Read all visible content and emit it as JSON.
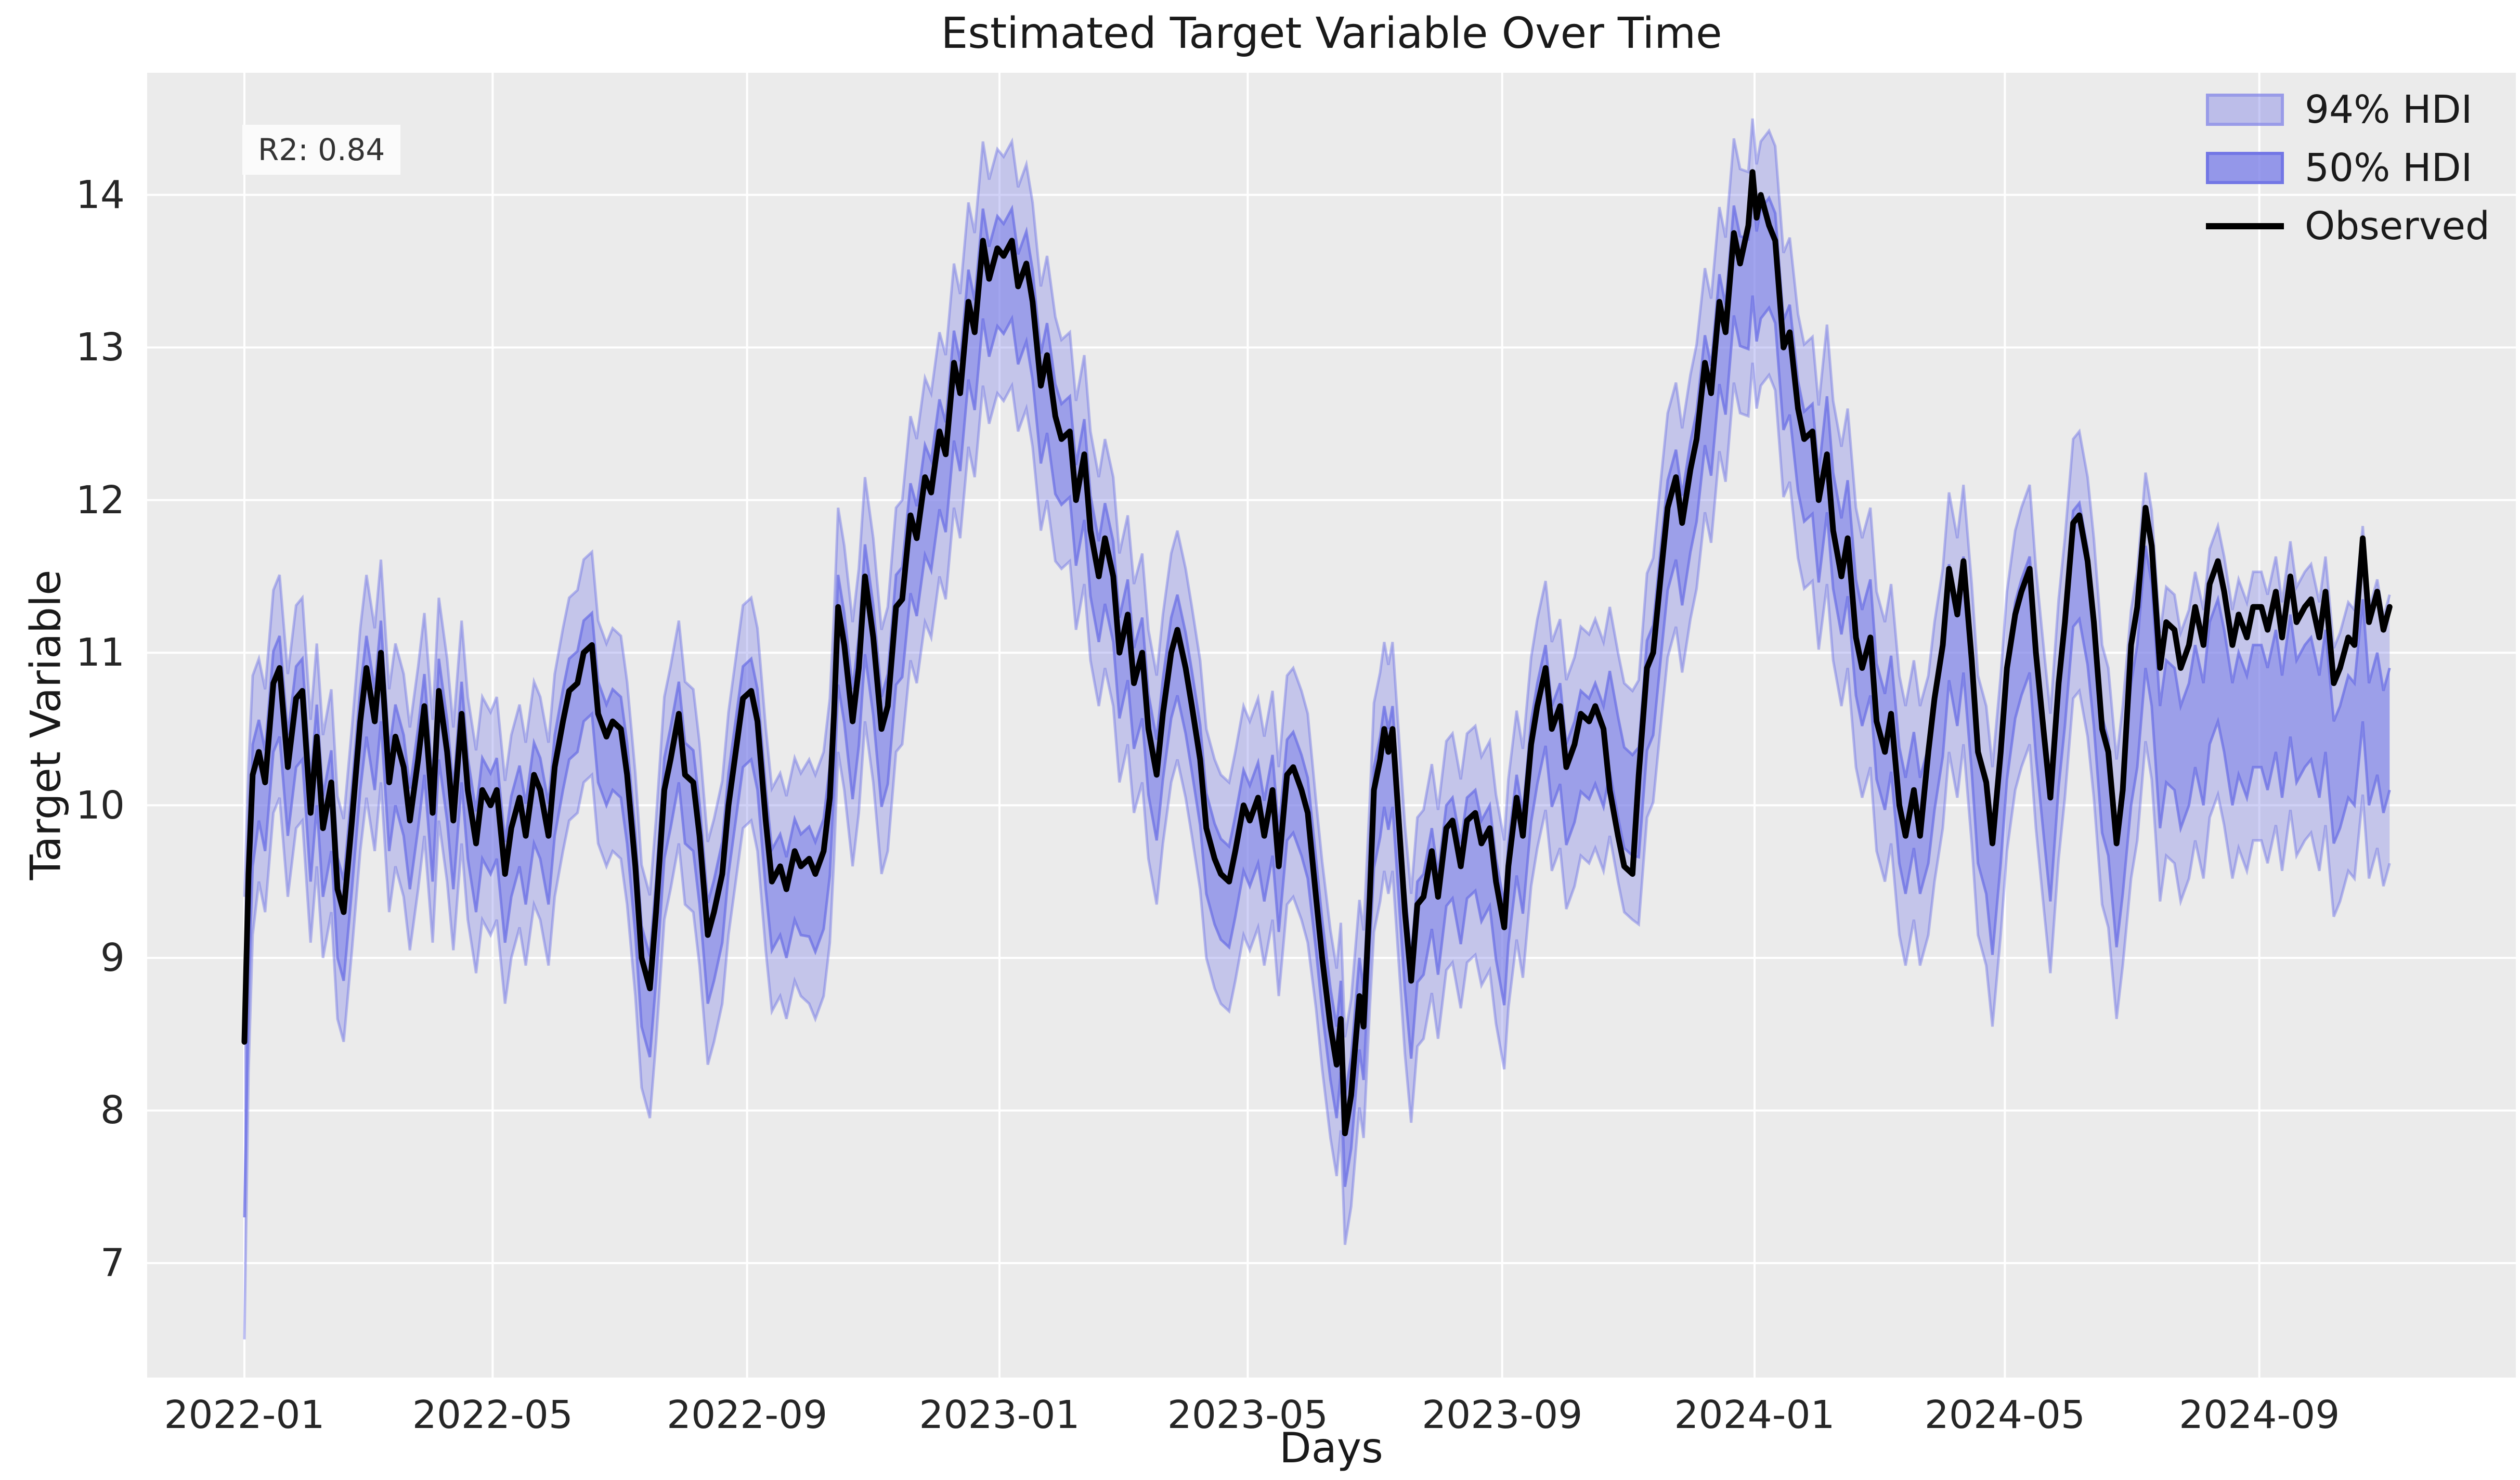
{
  "annotation": {
    "text": "R2: 0.84"
  },
  "chart_data": {
    "type": "line",
    "title": "Estimated Target Variable Over Time",
    "xlabel": "Days",
    "ylabel": "Target Variable",
    "legend_position": "upper right",
    "grid": true,
    "legend": [
      {
        "label": "94% HDI",
        "swatch": "band-light"
      },
      {
        "label": "50% HDI",
        "swatch": "band-dark"
      },
      {
        "label": "Observed",
        "swatch": "black-line"
      }
    ],
    "colors": {
      "band": "#7b7fe8",
      "band_edge": "#6c70e4",
      "band_alpha_94": 0.35,
      "band_alpha_50": 0.55,
      "observed": "#000000",
      "plot_bg": "#ebebeb",
      "grid": "#ffffff",
      "text": "#262626",
      "annotation_bg": "#fbfbfb"
    },
    "x_unit": "days since 2022-01-01",
    "xlim_days": [
      -47,
      1098
    ],
    "ylim": [
      6.25,
      14.8
    ],
    "x_ticks": [
      {
        "day": 0,
        "label": "2022-01"
      },
      {
        "day": 120,
        "label": "2022-05"
      },
      {
        "day": 243,
        "label": "2022-09"
      },
      {
        "day": 365,
        "label": "2023-01"
      },
      {
        "day": 485,
        "label": "2023-05"
      },
      {
        "day": 608,
        "label": "2023-09"
      },
      {
        "day": 730,
        "label": "2024-01"
      },
      {
        "day": 851,
        "label": "2024-05"
      },
      {
        "day": 974,
        "label": "2024-09"
      }
    ],
    "y_ticks": [
      7,
      8,
      9,
      10,
      11,
      12,
      13,
      14
    ],
    "series": {
      "days": [
        0,
        2,
        4,
        7,
        10,
        14,
        17,
        21,
        25,
        28,
        32,
        35,
        38,
        42,
        45,
        48,
        52,
        56,
        59,
        63,
        66,
        70,
        73,
        77,
        80,
        84,
        87,
        91,
        94,
        98,
        101,
        105,
        108,
        112,
        115,
        119,
        122,
        126,
        129,
        133,
        136,
        140,
        143,
        147,
        150,
        154,
        157,
        161,
        164,
        168,
        171,
        175,
        178,
        182,
        185,
        189,
        192,
        196,
        199,
        203,
        206,
        210,
        213,
        217,
        220,
        224,
        227,
        231,
        234,
        238,
        241,
        245,
        248,
        252,
        255,
        259,
        262,
        266,
        269,
        273,
        276,
        280,
        283,
        285,
        287,
        290,
        294,
        297,
        300,
        304,
        308,
        311,
        315,
        318,
        322,
        325,
        329,
        332,
        336,
        339,
        343,
        346,
        350,
        353,
        357,
        360,
        364,
        367,
        371,
        374,
        378,
        381,
        385,
        388,
        392,
        395,
        399,
        402,
        406,
        409,
        413,
        416,
        420,
        423,
        427,
        430,
        434,
        437,
        441,
        444,
        448,
        451,
        455,
        458,
        462,
        465,
        469,
        472,
        476,
        479,
        483,
        486,
        490,
        493,
        497,
        500,
        504,
        507,
        511,
        514,
        518,
        521,
        525,
        528,
        530,
        532,
        535,
        539,
        541,
        544,
        546,
        549,
        551,
        553,
        555,
        558,
        561,
        564,
        567,
        570,
        574,
        577,
        581,
        584,
        588,
        591,
        595,
        598,
        602,
        605,
        609,
        611,
        615,
        618,
        622,
        625,
        629,
        632,
        636,
        639,
        643,
        646,
        650,
        653,
        657,
        660,
        664,
        667,
        671,
        674,
        678,
        681,
        685,
        688,
        692,
        695,
        699,
        702,
        706,
        709,
        713,
        716,
        720,
        723,
        727,
        729,
        731,
        733,
        737,
        740,
        744,
        747,
        751,
        754,
        758,
        761,
        765,
        768,
        772,
        775,
        779,
        782,
        786,
        789,
        793,
        796,
        800,
        803,
        807,
        810,
        814,
        817,
        821,
        824,
        828,
        831,
        835,
        838,
        842,
        845,
        849,
        852,
        856,
        859,
        863,
        866,
        870,
        873,
        877,
        880,
        884,
        887,
        891,
        894,
        898,
        901,
        905,
        908,
        912,
        915,
        919,
        922,
        926,
        929,
        933,
        936,
        940,
        943,
        947,
        950,
        954,
        957,
        961,
        964,
        968,
        971,
        975,
        978,
        982,
        985,
        989,
        992,
        996,
        999,
        1003,
        1006,
        1010,
        1013,
        1017,
        1020,
        1024,
        1027,
        1031,
        1034,
        1037
      ],
      "observed": [
        8.45,
        9.55,
        10.2,
        10.35,
        10.15,
        10.8,
        10.9,
        10.25,
        10.7,
        10.75,
        9.95,
        10.45,
        9.85,
        10.15,
        9.45,
        9.3,
        9.9,
        10.55,
        10.9,
        10.55,
        11.0,
        10.15,
        10.45,
        10.25,
        9.9,
        10.3,
        10.65,
        9.95,
        10.75,
        10.35,
        9.9,
        10.6,
        10.1,
        9.75,
        10.1,
        10.0,
        10.1,
        9.55,
        9.85,
        10.05,
        9.8,
        10.2,
        10.1,
        9.8,
        10.25,
        10.55,
        10.75,
        10.8,
        11.0,
        11.05,
        10.6,
        10.45,
        10.55,
        10.5,
        10.2,
        9.6,
        9.0,
        8.8,
        9.3,
        10.1,
        10.3,
        10.6,
        10.2,
        10.15,
        9.8,
        9.15,
        9.3,
        9.55,
        10.0,
        10.4,
        10.7,
        10.75,
        10.55,
        9.9,
        9.5,
        9.6,
        9.45,
        9.7,
        9.6,
        9.65,
        9.55,
        9.7,
        10.05,
        10.6,
        11.3,
        11.05,
        10.55,
        10.9,
        11.5,
        11.1,
        10.5,
        10.65,
        11.3,
        11.35,
        11.9,
        11.75,
        12.15,
        12.05,
        12.45,
        12.3,
        12.9,
        12.7,
        13.3,
        13.1,
        13.7,
        13.45,
        13.65,
        13.6,
        13.7,
        13.4,
        13.55,
        13.3,
        12.75,
        12.95,
        12.55,
        12.4,
        12.45,
        12.0,
        12.3,
        11.8,
        11.5,
        11.75,
        11.5,
        11.0,
        11.25,
        10.8,
        11.0,
        10.5,
        10.2,
        10.6,
        11.0,
        11.15,
        10.9,
        10.65,
        10.3,
        9.85,
        9.65,
        9.55,
        9.5,
        9.7,
        10.0,
        9.9,
        10.05,
        9.8,
        10.1,
        9.6,
        10.2,
        10.25,
        10.1,
        9.95,
        9.4,
        9.0,
        8.55,
        8.3,
        8.6,
        7.85,
        8.1,
        8.75,
        8.55,
        9.4,
        10.1,
        10.3,
        10.5,
        10.35,
        10.5,
        9.9,
        9.3,
        8.85,
        9.35,
        9.4,
        9.7,
        9.4,
        9.85,
        9.9,
        9.6,
        9.9,
        9.95,
        9.75,
        9.85,
        9.5,
        9.2,
        9.6,
        10.05,
        9.8,
        10.4,
        10.65,
        10.9,
        10.5,
        10.65,
        10.25,
        10.4,
        10.6,
        10.55,
        10.65,
        10.5,
        10.1,
        9.8,
        9.6,
        9.55,
        10.2,
        10.9,
        11.0,
        11.55,
        11.95,
        12.15,
        11.85,
        12.2,
        12.4,
        12.9,
        12.7,
        13.3,
        13.1,
        13.75,
        13.55,
        13.8,
        14.15,
        13.85,
        14.0,
        13.8,
        13.7,
        13.0,
        13.1,
        12.6,
        12.4,
        12.45,
        12.0,
        12.3,
        11.8,
        11.5,
        11.75,
        11.1,
        10.9,
        11.1,
        10.55,
        10.35,
        10.6,
        10.0,
        9.8,
        10.1,
        9.8,
        10.35,
        10.7,
        11.05,
        11.55,
        11.25,
        11.6,
        10.95,
        10.35,
        10.15,
        9.75,
        10.35,
        10.9,
        11.25,
        11.4,
        11.55,
        11.0,
        10.45,
        10.05,
        10.8,
        11.2,
        11.85,
        11.9,
        11.6,
        11.2,
        10.5,
        10.35,
        9.75,
        10.1,
        11.05,
        11.3,
        11.95,
        11.7,
        10.9,
        11.2,
        11.15,
        10.9,
        11.05,
        11.3,
        11.05,
        11.45,
        11.6,
        11.4,
        11.05,
        11.25,
        11.1,
        11.3,
        11.3,
        11.15,
        11.4,
        11.1,
        11.5,
        11.2,
        11.3,
        11.35,
        11.1,
        11.4,
        10.8,
        10.9,
        11.1,
        11.05,
        11.75,
        11.2,
        11.4,
        11.15,
        11.3
      ]
    },
    "hdi_segments": [
      {
        "from_day": 0,
        "mean_offset": 0.5,
        "hw50": 0.65,
        "hw94": 1.45
      },
      {
        "from_day": 2,
        "mean_offset": 0.3,
        "hw50": 0.45,
        "hw94": 1.0
      },
      {
        "from_day": 4,
        "mean_offset": 0.2,
        "hw50": 0.4,
        "hw94": 0.85
      },
      {
        "from_day": 7,
        "mean_offset": 0.12,
        "hw50": 0.33,
        "hw94": 0.73
      },
      {
        "from_day": 273,
        "mean_offset": 0.15,
        "hw50": 0.36,
        "hw94": 0.8
      },
      {
        "from_day": 395,
        "mean_offset": 0.1,
        "hw50": 0.33,
        "hw94": 0.75
      },
      {
        "from_day": 518,
        "mean_offset": 0.05,
        "hw50": 0.3,
        "hw94": 0.68
      },
      {
        "from_day": 546,
        "mean_offset": 0.18,
        "hw50": 0.33,
        "hw94": 0.75
      },
      {
        "from_day": 660,
        "mean_offset": -0.45,
        "hw50": 0.33,
        "hw94": 0.75
      },
      {
        "from_day": 674,
        "mean_offset": 0.18,
        "hw50": 0.36,
        "hw94": 0.8
      },
      {
        "from_day": 727,
        "mean_offset": 0.45,
        "hw50": 0.36,
        "hw94": 0.8
      },
      {
        "from_day": 737,
        "mean_offset": 0.18,
        "hw50": 0.36,
        "hw94": 0.8
      },
      {
        "from_day": 765,
        "mean_offset": 0.0,
        "hw50": 0.38,
        "hw94": 0.85
      },
      {
        "from_day": 814,
        "mean_offset": 0.35,
        "hw50": 0.38,
        "hw94": 0.85
      },
      {
        "from_day": 856,
        "mean_offset": 0.3,
        "hw50": 0.38,
        "hw94": 0.85
      },
      {
        "from_day": 912,
        "mean_offset": 0.65,
        "hw50": 0.4,
        "hw94": 0.88
      },
      {
        "from_day": 1024,
        "mean_offset": 0.8,
        "hw50": 0.4,
        "hw94": 0.88
      }
    ]
  }
}
